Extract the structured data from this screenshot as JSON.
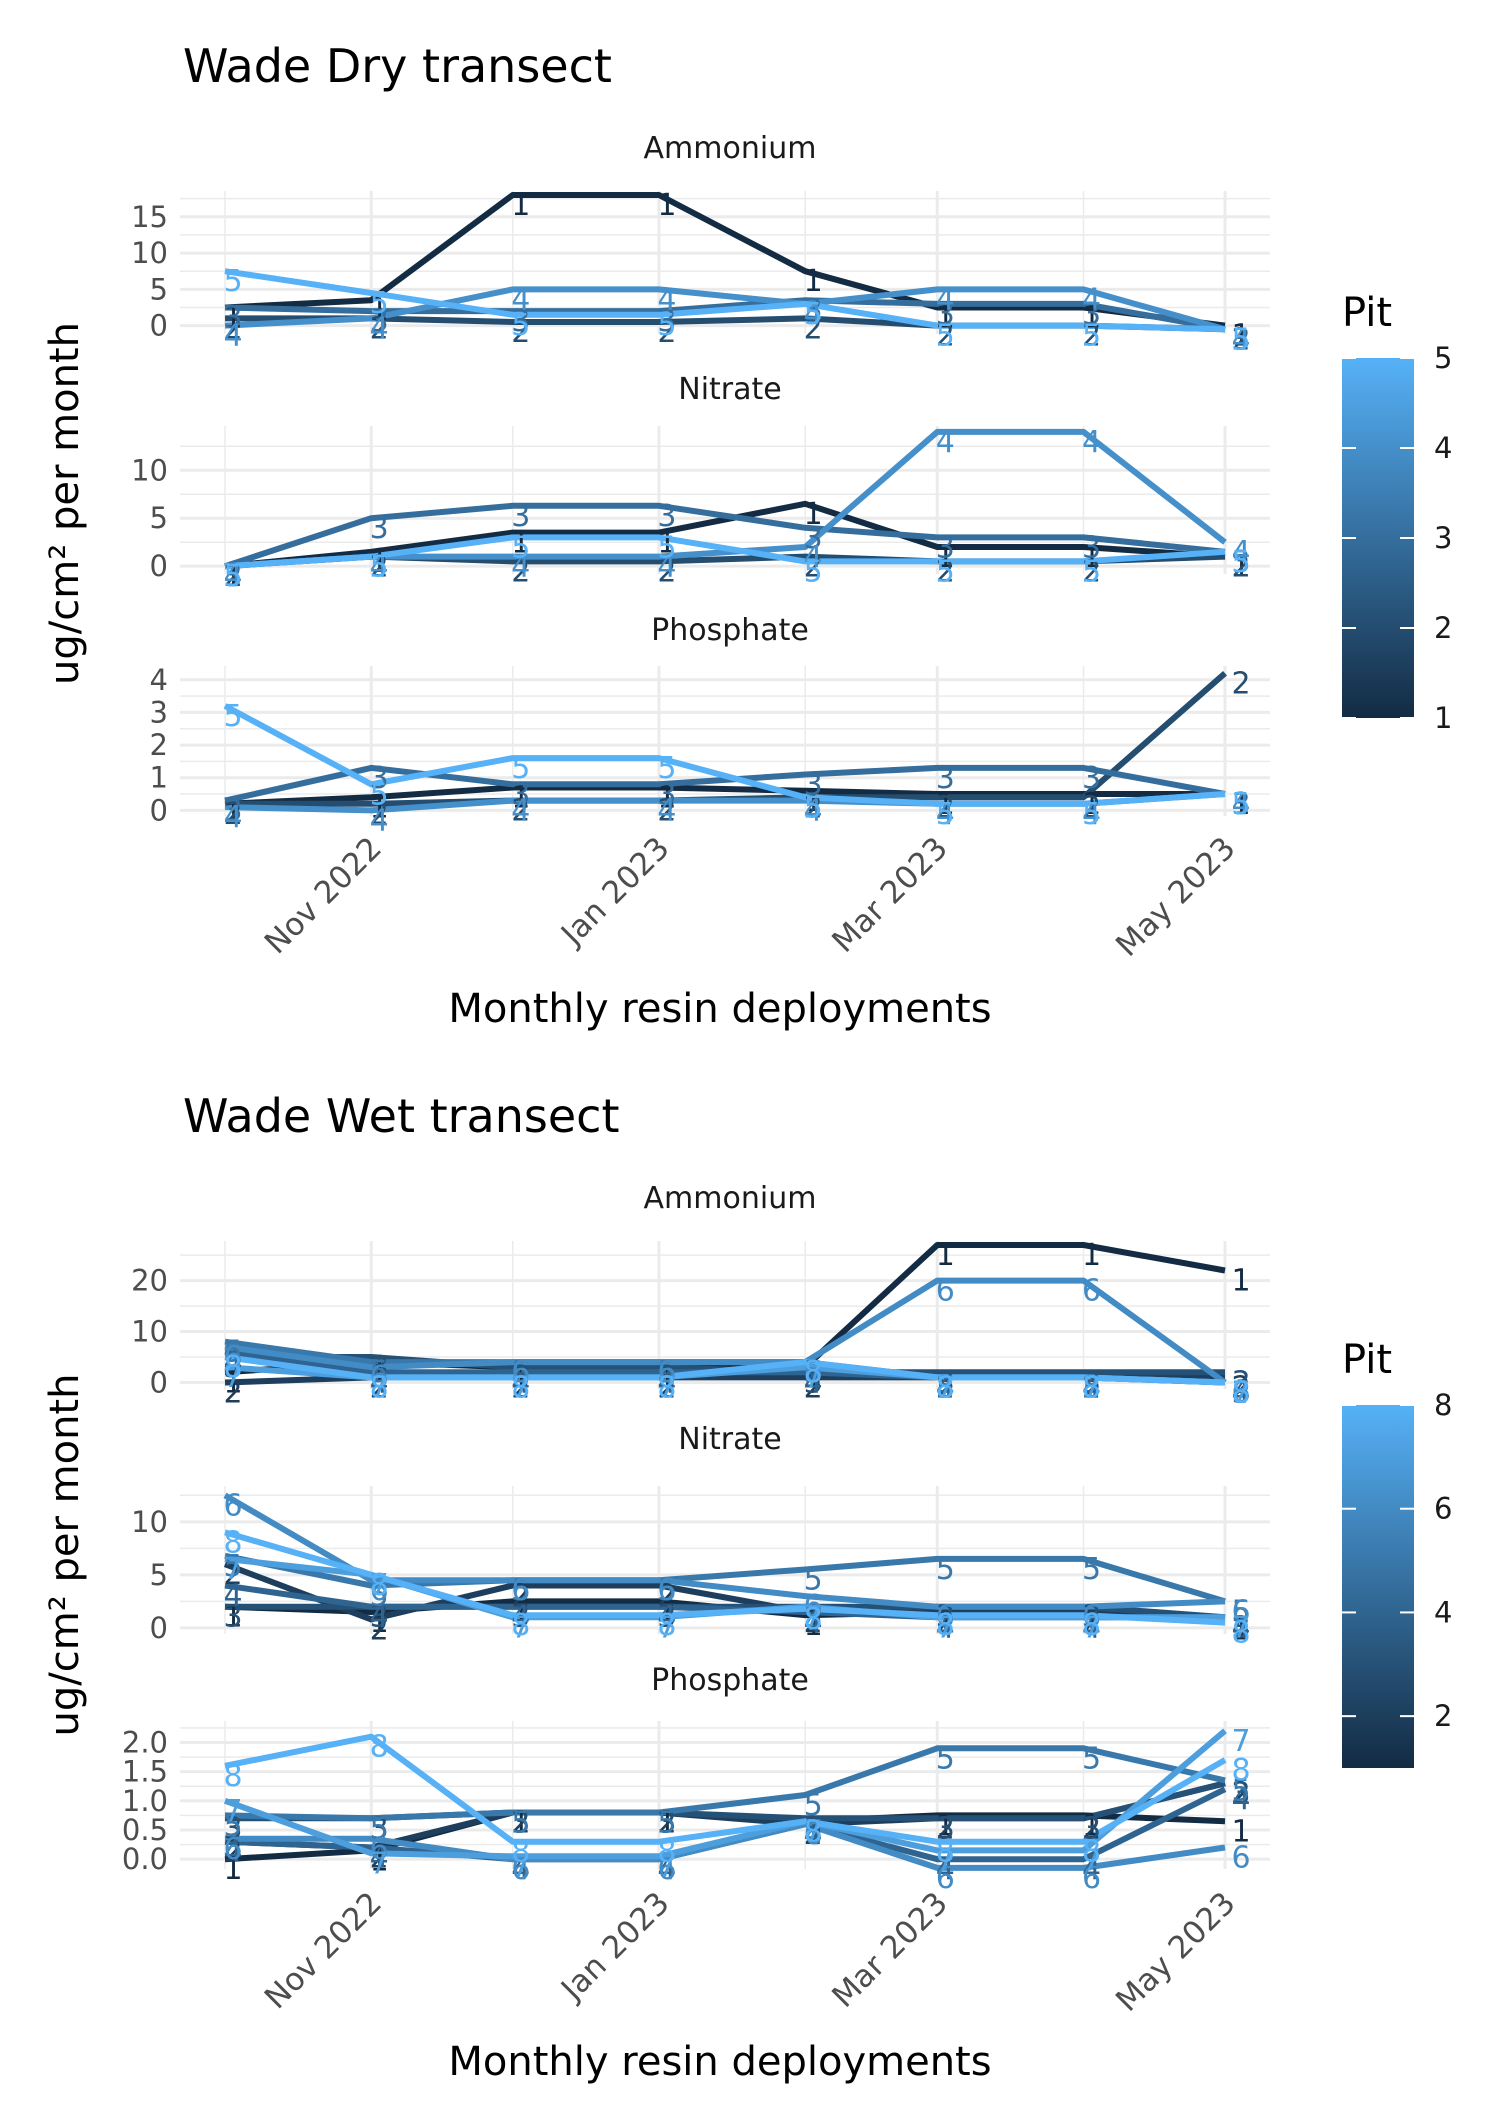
{
  "chart_data": [
    {
      "type": "line",
      "title": "Wade Dry transect",
      "xlabel": "Monthly resin deployments",
      "ylabel": "ug/cm² per month",
      "x": [
        "2022-10-01",
        "2022-11-01",
        "2022-12-01",
        "2023-01-01",
        "2023-02-01",
        "2023-03-01",
        "2023-04-01",
        "2023-05-01"
      ],
      "x_ticks": [
        {
          "date": "2022-11-01",
          "label": "Nov 2022"
        },
        {
          "date": "2023-01-01",
          "label": "Jan 2023"
        },
        {
          "date": "2023-03-01",
          "label": "Mar 2023"
        },
        {
          "date": "2023-05-01",
          "label": "May 2023"
        }
      ],
      "legend": {
        "title": "Pit",
        "position": "right",
        "min": 1,
        "max": 5,
        "ticks": [
          1,
          2,
          3,
          4,
          5
        ]
      },
      "facets": [
        {
          "name": "Ammonium",
          "ylim": [
            -0.6,
            18
          ],
          "yticks": [
            0,
            5,
            10,
            15
          ],
          "series": [
            {
              "pit": 1,
              "values": [
                2.5,
                3.5,
                18,
                18,
                7.5,
                2.5,
                2.5,
                0
              ]
            },
            {
              "pit": 2,
              "values": [
                1,
                1,
                0.5,
                0.5,
                1,
                0,
                0,
                -0.5
              ]
            },
            {
              "pit": 3,
              "values": [
                2.5,
                2,
                2,
                2,
                3.5,
                3,
                3,
                -0.5
              ]
            },
            {
              "pit": 4,
              "values": [
                0,
                1,
                5,
                5,
                3,
                5,
                5,
                -0.5
              ]
            },
            {
              "pit": 5,
              "values": [
                7.5,
                4.5,
                1.5,
                1.5,
                3,
                0,
                0,
                -0.5
              ]
            }
          ]
        },
        {
          "name": "Nitrate",
          "ylim": [
            -0.4,
            14.2
          ],
          "yticks": [
            0,
            5,
            10
          ],
          "series": [
            {
              "pit": 1,
              "values": [
                0,
                1.5,
                3.5,
                3.5,
                6.5,
                2,
                2,
                1
              ]
            },
            {
              "pit": 2,
              "values": [
                0,
                1,
                0.5,
                0.5,
                1,
                0.5,
                0.5,
                1
              ]
            },
            {
              "pit": 3,
              "values": [
                0,
                5,
                6.3,
                6.3,
                4,
                3,
                3,
                1.5
              ]
            },
            {
              "pit": 4,
              "values": [
                0,
                1,
                1,
                1,
                2,
                14,
                14,
                2.5
              ]
            },
            {
              "pit": 5,
              "values": [
                0,
                1,
                3,
                3,
                0.5,
                0.5,
                0.5,
                1.5
              ]
            }
          ]
        },
        {
          "name": "Phosphate",
          "ylim": [
            -0.05,
            4.3
          ],
          "yticks": [
            0,
            1,
            2,
            3,
            4
          ],
          "series": [
            {
              "pit": 1,
              "values": [
                0.2,
                0.4,
                0.7,
                0.7,
                0.6,
                0.5,
                0.5,
                0.5
              ]
            },
            {
              "pit": 2,
              "values": [
                0.2,
                0.2,
                0.3,
                0.3,
                0.4,
                0.4,
                0.4,
                4.2
              ]
            },
            {
              "pit": 3,
              "values": [
                0.3,
                1.3,
                0.8,
                0.8,
                1.1,
                1.3,
                1.3,
                0.5
              ]
            },
            {
              "pit": 4,
              "values": [
                0.1,
                0.0,
                0.3,
                0.3,
                0.3,
                0.2,
                0.2,
                0.5
              ]
            },
            {
              "pit": 5,
              "values": [
                3.2,
                0.8,
                1.6,
                1.6,
                0.4,
                0.2,
                0.2,
                0.5
              ]
            }
          ]
        }
      ]
    },
    {
      "type": "line",
      "title": "Wade Wet transect",
      "xlabel": "Monthly resin deployments",
      "ylabel": "ug/cm² per month",
      "x": [
        "2022-10-01",
        "2022-11-01",
        "2022-12-01",
        "2023-01-01",
        "2023-02-01",
        "2023-03-01",
        "2023-04-01",
        "2023-05-01"
      ],
      "x_ticks": [
        {
          "date": "2022-11-01",
          "label": "Nov 2022"
        },
        {
          "date": "2023-01-01",
          "label": "Jan 2023"
        },
        {
          "date": "2023-03-01",
          "label": "Mar 2023"
        },
        {
          "date": "2023-05-01",
          "label": "May 2023"
        }
      ],
      "legend": {
        "title": "Pit",
        "position": "right",
        "min": 1,
        "max": 8,
        "ticks": [
          2,
          4,
          6,
          8
        ]
      },
      "facets": [
        {
          "name": "Ammonium",
          "ylim": [
            -0.5,
            27
          ],
          "yticks": [
            0,
            10,
            20
          ],
          "series": [
            {
              "pit": 1,
              "values": [
                2,
                4,
                3,
                3,
                3,
                27,
                27,
                22
              ]
            },
            {
              "pit": 2,
              "values": [
                0,
                1,
                1,
                1,
                1,
                1,
                1,
                1
              ]
            },
            {
              "pit": 3,
              "values": [
                5,
                5,
                3,
                3,
                2,
                2,
                2,
                2
              ]
            },
            {
              "pit": 4,
              "values": [
                6,
                2,
                2,
                2,
                2,
                1,
                1,
                0
              ]
            },
            {
              "pit": 5,
              "values": [
                8,
                4,
                4,
                4,
                4,
                1,
                1,
                0
              ]
            },
            {
              "pit": 6,
              "values": [
                7,
                3,
                4,
                4,
                4,
                20,
                20,
                0
              ]
            },
            {
              "pit": 7,
              "values": [
                3,
                1,
                1,
                1,
                3,
                1,
                1,
                0
              ]
            },
            {
              "pit": 8,
              "values": [
                5,
                1,
                1,
                1,
                4,
                1,
                1,
                0
              ]
            }
          ]
        },
        {
          "name": "Nitrate",
          "ylim": [
            -0.2,
            13
          ],
          "yticks": [
            0,
            5,
            10
          ],
          "series": [
            {
              "pit": 1,
              "values": [
                2,
                1.5,
                2.5,
                2.5,
                1.2,
                1.5,
                1.5,
                0.8
              ]
            },
            {
              "pit": 2,
              "values": [
                6,
                0.8,
                4,
                4,
                1.5,
                1.5,
                1.5,
                1
              ]
            },
            {
              "pit": 3,
              "values": [
                2,
                2,
                2,
                2,
                2,
                2,
                2,
                1
              ]
            },
            {
              "pit": 4,
              "values": [
                4,
                2,
                2,
                2,
                1.5,
                1,
                1,
                1
              ]
            },
            {
              "pit": 5,
              "values": [
                6.8,
                4,
                4.5,
                4.5,
                5.5,
                6.5,
                6.5,
                2.5
              ]
            },
            {
              "pit": 6,
              "values": [
                12.5,
                4.5,
                4.5,
                4.5,
                3,
                2,
                2,
                2.5
              ]
            },
            {
              "pit": 7,
              "values": [
                6.5,
                5,
                1,
                1,
                2,
                1,
                1,
                1
              ]
            },
            {
              "pit": 8,
              "values": [
                9,
                5,
                1.2,
                1.2,
                1.8,
                1.2,
                1.2,
                0.5
              ]
            }
          ]
        },
        {
          "name": "Phosphate",
          "ylim": [
            -0.1,
            2.3
          ],
          "yticks": [
            0.0,
            0.5,
            1.0,
            1.5,
            2.0
          ],
          "yticks_labels": [
            "0.0",
            "0.5",
            "1.0",
            "1.5",
            "2.0"
          ],
          "series": [
            {
              "pit": 1,
              "values": [
                0.0,
                0.15,
                0.8,
                0.8,
                0.65,
                0.75,
                0.75,
                0.65
              ]
            },
            {
              "pit": 2,
              "values": [
                0.3,
                0.2,
                0.8,
                0.8,
                0.6,
                0.7,
                0.7,
                1.3
              ]
            },
            {
              "pit": 3,
              "values": [
                0.7,
                0.7,
                0.8,
                0.8,
                0.7,
                0.7,
                0.7,
                1.3
              ]
            },
            {
              "pit": 4,
              "values": [
                0.3,
                0.2,
                0.0,
                0.0,
                0.6,
                0.0,
                0.0,
                1.2
              ]
            },
            {
              "pit": 5,
              "values": [
                0.75,
                0.7,
                0.8,
                0.8,
                1.1,
                1.9,
                1.9,
                1.35
              ]
            },
            {
              "pit": 6,
              "values": [
                0.35,
                0.35,
                0.0,
                0.0,
                0.6,
                -0.15,
                -0.15,
                0.2
              ]
            },
            {
              "pit": 7,
              "values": [
                1.0,
                0.1,
                0.05,
                0.05,
                0.65,
                0.15,
                0.15,
                2.2
              ]
            },
            {
              "pit": 8,
              "values": [
                1.6,
                2.1,
                0.3,
                0.3,
                0.65,
                0.3,
                0.3,
                1.7
              ]
            }
          ]
        }
      ]
    }
  ]
}
